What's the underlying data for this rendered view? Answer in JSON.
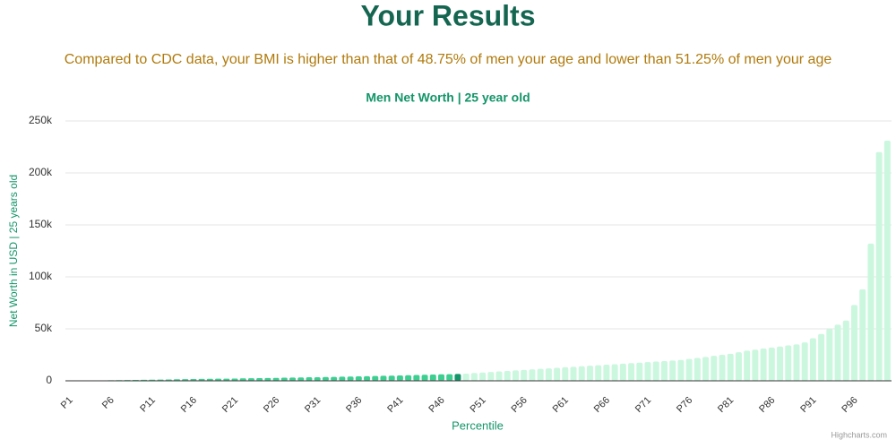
{
  "header": {
    "title": "Your Results",
    "subtitle": "Compared to CDC data, your BMI is higher than that of 48.75% of men your age and lower than 51.25% of men your age"
  },
  "credit": "Highcharts.com",
  "chart_data": {
    "type": "bar",
    "title": "Men Net Worth | 25 year old",
    "x_label": "Percentile",
    "y_label": "Net Worth in USD | 25 years old",
    "categories": [
      "P1",
      null,
      null,
      null,
      null,
      "P6",
      null,
      null,
      null,
      null,
      "P11",
      null,
      null,
      null,
      null,
      "P16",
      null,
      null,
      null,
      null,
      "P21",
      null,
      null,
      null,
      null,
      "P26",
      null,
      null,
      null,
      null,
      "P31",
      null,
      null,
      null,
      null,
      "P36",
      null,
      null,
      null,
      null,
      "P41",
      null,
      null,
      null,
      null,
      "P46",
      null,
      null,
      null,
      null,
      "P51",
      null,
      null,
      null,
      null,
      "P56",
      null,
      null,
      null,
      null,
      "P61",
      null,
      null,
      null,
      null,
      "P66",
      null,
      null,
      null,
      null,
      "P71",
      null,
      null,
      null,
      null,
      "P76",
      null,
      null,
      null,
      null,
      "P81",
      null,
      null,
      null,
      null,
      "P86",
      null,
      null,
      null,
      null,
      "P91",
      null,
      null,
      null,
      null,
      "P96",
      null,
      null,
      null,
      null
    ],
    "values": [
      0,
      0,
      0,
      0,
      200,
      500,
      700,
      800,
      900,
      1000,
      1100,
      1200,
      1300,
      1500,
      1600,
      1700,
      1800,
      1900,
      2000,
      2100,
      2200,
      2400,
      2500,
      2600,
      2700,
      2800,
      3000,
      3100,
      3200,
      3400,
      3500,
      3700,
      3800,
      4000,
      4100,
      4300,
      4400,
      4600,
      4800,
      5000,
      5200,
      5400,
      5600,
      5800,
      6000,
      6200,
      6400,
      6600,
      6900,
      7500,
      8000,
      8500,
      9000,
      9500,
      10000,
      10500,
      11000,
      11500,
      12000,
      12500,
      13000,
      13500,
      14000,
      14500,
      15000,
      15500,
      16000,
      16500,
      17000,
      17500,
      18000,
      18500,
      19000,
      19500,
      20000,
      21000,
      22000,
      23000,
      24000,
      25000,
      26000,
      27500,
      29000,
      30000,
      31000,
      32000,
      33000,
      34000,
      35000,
      37000,
      41000,
      45000,
      50000,
      54000,
      58000,
      73000,
      88000,
      132000,
      220000,
      231000
    ],
    "colors": [
      "#3dcf91",
      "#3dcf91",
      "#3dcf91",
      "#3dcf91",
      "#3dcf91",
      "#3dcf91",
      "#3dcf91",
      "#3dcf91",
      "#3dcf91",
      "#3dcf91",
      "#3dcf91",
      "#3dcf91",
      "#3dcf91",
      "#3dcf91",
      "#3dcf91",
      "#3dcf91",
      "#3dcf91",
      "#3dcf91",
      "#3dcf91",
      "#3dcf91",
      "#3dcf91",
      "#3dcf91",
      "#3dcf91",
      "#3dcf91",
      "#3dcf91",
      "#3dcf91",
      "#3dcf91",
      "#3dcf91",
      "#3dcf91",
      "#3dcf91",
      "#3dcf91",
      "#3dcf91",
      "#3dcf91",
      "#3dcf91",
      "#3dcf91",
      "#3dcf91",
      "#3dcf91",
      "#3dcf91",
      "#3dcf91",
      "#3dcf91",
      "#3dcf91",
      "#3dcf91",
      "#3dcf91",
      "#3dcf91",
      "#3dcf91",
      "#3dcf91",
      "#3dcf91",
      "#13956a",
      "#cbf7df",
      "#cbf7df",
      "#cbf7df",
      "#cbf7df",
      "#cbf7df",
      "#cbf7df",
      "#cbf7df",
      "#cbf7df",
      "#cbf7df",
      "#cbf7df",
      "#cbf7df",
      "#cbf7df",
      "#cbf7df",
      "#cbf7df",
      "#cbf7df",
      "#cbf7df",
      "#cbf7df",
      "#cbf7df",
      "#cbf7df",
      "#cbf7df",
      "#cbf7df",
      "#cbf7df",
      "#cbf7df",
      "#cbf7df",
      "#cbf7df",
      "#cbf7df",
      "#cbf7df",
      "#cbf7df",
      "#cbf7df",
      "#cbf7df",
      "#cbf7df",
      "#cbf7df",
      "#cbf7df",
      "#cbf7df",
      "#cbf7df",
      "#cbf7df",
      "#cbf7df",
      "#cbf7df",
      "#cbf7df",
      "#cbf7df",
      "#cbf7df",
      "#cbf7df",
      "#cbf7df",
      "#cbf7df",
      "#cbf7df",
      "#cbf7df",
      "#cbf7df",
      "#cbf7df",
      "#cbf7df",
      "#cbf7df",
      "#cbf7df",
      "#cbf7df"
    ],
    "ylim": [
      0,
      250000
    ],
    "yticks": [
      0,
      {
        "value": 50000,
        "label": "50k"
      },
      {
        "value": 100000,
        "label": "100k"
      },
      {
        "value": 150000,
        "label": "150k"
      },
      {
        "value": 200000,
        "label": "200k"
      },
      {
        "value": 250000,
        "label": "250k"
      }
    ],
    "grid": true
  }
}
